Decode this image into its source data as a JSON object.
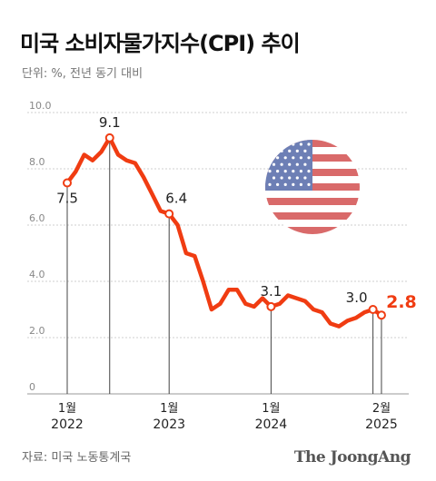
{
  "header": {
    "title": "미국 소비자물가지수(CPI) 추이",
    "subtitle": "단위: %, 전년 동기 대비"
  },
  "footer": {
    "source": "자료: 미국 노동통계국",
    "brand": "The JoongAng"
  },
  "colors": {
    "line": "#f03c12",
    "highlight": "#f03c12",
    "grid": "#cfcfcf",
    "flag_red": "#d96a6a",
    "flag_blue": "#6d7fb5"
  },
  "flag_icon": "us-flag-icon",
  "chart_data": {
    "type": "line",
    "title": "미국 소비자물가지수(CPI) 추이",
    "ylabel": "단위: %, 전년 동기 대비",
    "ylim": [
      0,
      10
    ],
    "yticks": [
      "0",
      "2.0",
      "4.0",
      "6.0",
      "8.0",
      "10.0"
    ],
    "xticks": [
      {
        "month": "1월",
        "year": "2022"
      },
      {
        "month": "1월",
        "year": "2023"
      },
      {
        "month": "1월",
        "year": "2024"
      },
      {
        "month": "2월",
        "year": "2025"
      }
    ],
    "x": [
      "2022-01",
      "2022-02",
      "2022-03",
      "2022-04",
      "2022-05",
      "2022-06",
      "2022-07",
      "2022-08",
      "2022-09",
      "2022-10",
      "2022-11",
      "2022-12",
      "2023-01",
      "2023-02",
      "2023-03",
      "2023-04",
      "2023-05",
      "2023-06",
      "2023-07",
      "2023-08",
      "2023-09",
      "2023-10",
      "2023-11",
      "2023-12",
      "2024-01",
      "2024-02",
      "2024-03",
      "2024-04",
      "2024-05",
      "2024-06",
      "2024-07",
      "2024-08",
      "2024-09",
      "2024-10",
      "2024-11",
      "2024-12",
      "2025-01",
      "2025-02"
    ],
    "values": [
      7.5,
      7.9,
      8.5,
      8.3,
      8.6,
      9.1,
      8.5,
      8.3,
      8.2,
      7.7,
      7.1,
      6.5,
      6.4,
      6.0,
      5.0,
      4.9,
      4.0,
      3.0,
      3.2,
      3.7,
      3.7,
      3.2,
      3.1,
      3.4,
      3.1,
      3.2,
      3.5,
      3.4,
      3.3,
      3.0,
      2.9,
      2.5,
      2.4,
      2.6,
      2.7,
      2.9,
      3.0,
      2.8
    ],
    "annotations": [
      {
        "index": 0,
        "label": "7.5"
      },
      {
        "index": 5,
        "label": "9.1"
      },
      {
        "index": 12,
        "label": "6.4"
      },
      {
        "index": 24,
        "label": "3.1"
      },
      {
        "index": 36,
        "label": "3.0"
      },
      {
        "index": 37,
        "label": "2.8"
      }
    ]
  }
}
